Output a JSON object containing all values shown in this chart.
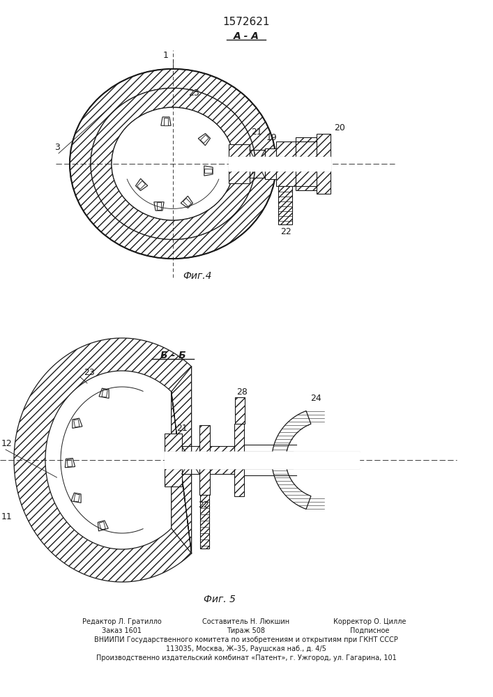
{
  "title": "1572621",
  "fig4_label": "А - А",
  "fig5_label": "Б - Б",
  "fig4_caption": "Фиг.4",
  "fig5_caption": "Фиг. 5",
  "footer_col1_line1": "Редактор Л. Гратилло",
  "footer_col1_line2": "Заказ 1601",
  "footer_col2_line1": "Составитель Н. Люкшин",
  "footer_col2_line2": "Тираж 508",
  "footer_col3_line1": "Корректор О. Цилле",
  "footer_col3_line2": "Подписное",
  "footer_line3": "ВНИИПИ Государственного комитета по изобретениям и открытиям при ГКНТ СССР",
  "footer_line4": "113035, Москва, Ж–35, Раушская наб., д. 4/5",
  "footer_line5": "Производственно издательский комбинат «Патент», г. Ужгород, ул. Гагарина, 101",
  "bg_color": "#ffffff",
  "line_color": "#1a1a1a"
}
